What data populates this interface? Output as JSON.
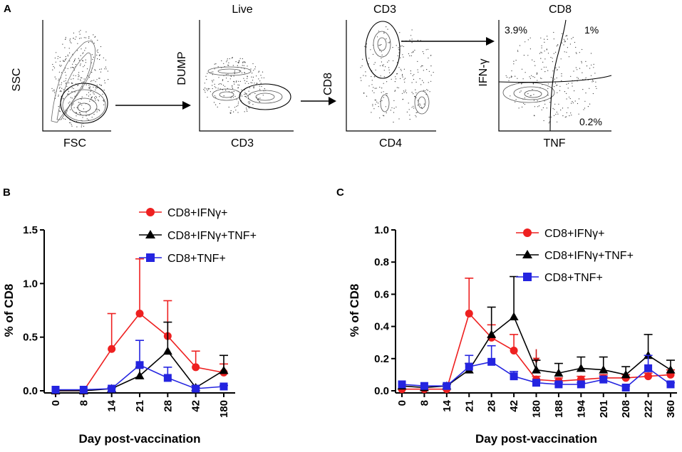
{
  "panel_a": {
    "letter": "A",
    "plots": [
      {
        "title": "",
        "xlabel": "FSC",
        "ylabel": "SSC"
      },
      {
        "title": "Live",
        "xlabel": "CD3",
        "ylabel": "DUMP"
      },
      {
        "title": "CD3",
        "xlabel": "CD4",
        "ylabel": "CD8"
      },
      {
        "title": "CD8",
        "xlabel": "TNF",
        "ylabel": "IFN-γ"
      }
    ],
    "quadrants": {
      "top_left": "3.9%",
      "top_right": "1%",
      "bottom_right": "0.2%"
    }
  },
  "chart_data": [
    {
      "panel": "B",
      "type": "line",
      "categories": [
        "0",
        "8",
        "14",
        "21",
        "28",
        "42",
        "180"
      ],
      "ylabel": "% of CD8",
      "xlabel": "Day post-vaccination",
      "ylim": [
        0,
        1.5
      ],
      "yticks": [
        "0.0",
        "0.5",
        "1.0",
        "1.5"
      ],
      "series": [
        {
          "name": "CD8+IFNγ+",
          "color": "#ee2020",
          "marker": "circle",
          "values": [
            0.0,
            0.0,
            0.39,
            0.72,
            0.51,
            0.22,
            0.17
          ],
          "err": [
            0,
            0,
            0.33,
            0.51,
            0.33,
            0.15,
            0.08
          ]
        },
        {
          "name": "CD8+IFNγ+TNF+",
          "color": "#000000",
          "marker": "triangle",
          "values": [
            0.0,
            0.0,
            0.02,
            0.14,
            0.37,
            0.03,
            0.19
          ],
          "err": [
            0,
            0,
            0.01,
            0.08,
            0.27,
            0.02,
            0.14
          ]
        },
        {
          "name": "CD8+TNF+",
          "color": "#2424e0",
          "marker": "square",
          "values": [
            0.01,
            0.01,
            0.02,
            0.24,
            0.12,
            0.02,
            0.04
          ],
          "err": [
            0,
            0,
            0.01,
            0.23,
            0.1,
            0.01,
            0.01
          ]
        }
      ]
    },
    {
      "panel": "C",
      "type": "line",
      "categories": [
        "0",
        "8",
        "14",
        "21",
        "28",
        "42",
        "180",
        "188",
        "194",
        "201",
        "208",
        "222",
        "360"
      ],
      "ylabel": "% of CD8",
      "xlabel": "Day post-vaccination",
      "ylim": [
        0,
        1.0
      ],
      "yticks": [
        "0.0",
        "0.2",
        "0.4",
        "0.6",
        "0.8",
        "1.0"
      ],
      "annotation": "arrow at day 180",
      "series": [
        {
          "name": "CD8+IFNγ+",
          "color": "#ee2020",
          "marker": "circle",
          "values": [
            0.01,
            0.01,
            0.01,
            0.48,
            0.33,
            0.25,
            0.07,
            0.06,
            0.07,
            0.08,
            0.08,
            0.09,
            0.1
          ],
          "err": [
            0,
            0,
            0,
            0.22,
            0.08,
            0.1,
            0.02,
            0.02,
            0.02,
            0.02,
            0.02,
            0.02,
            0.03
          ]
        },
        {
          "name": "CD8+IFNγ+TNF+",
          "color": "#000000",
          "marker": "triangle",
          "values": [
            0.03,
            0.02,
            0.03,
            0.13,
            0.35,
            0.46,
            0.13,
            0.11,
            0.14,
            0.13,
            0.1,
            0.22,
            0.13
          ],
          "err": [
            0,
            0,
            0.01,
            0.04,
            0.17,
            0.25,
            0.06,
            0.06,
            0.07,
            0.08,
            0.05,
            0.13,
            0.06
          ]
        },
        {
          "name": "CD8+TNF+",
          "color": "#2424e0",
          "marker": "square",
          "values": [
            0.04,
            0.03,
            0.03,
            0.15,
            0.18,
            0.09,
            0.05,
            0.04,
            0.04,
            0.07,
            0.02,
            0.14,
            0.04
          ],
          "err": [
            0,
            0,
            0,
            0.07,
            0.1,
            0.03,
            0.01,
            0.01,
            0.01,
            0.02,
            0.01,
            0.08,
            0.01
          ]
        }
      ]
    }
  ]
}
